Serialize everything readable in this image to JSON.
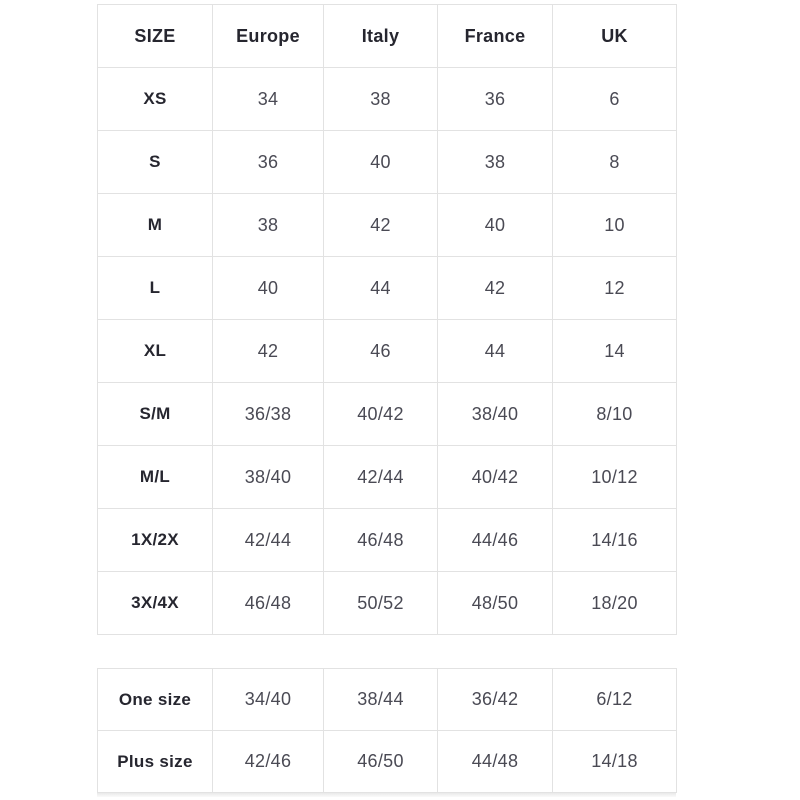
{
  "colors": {
    "background": "#ffffff",
    "border": "#e2e2e2",
    "header_text": "#26262f",
    "value_text": "#4a4a54"
  },
  "size_table": {
    "headers": [
      "SIZE",
      "Europe",
      "Italy",
      "France",
      "UK"
    ],
    "rows": [
      {
        "label": "XS",
        "values": [
          "34",
          "38",
          "36",
          "6"
        ]
      },
      {
        "label": "S",
        "values": [
          "36",
          "40",
          "38",
          "8"
        ]
      },
      {
        "label": "M",
        "values": [
          "38",
          "42",
          "40",
          "10"
        ]
      },
      {
        "label": "L",
        "values": [
          "40",
          "44",
          "42",
          "12"
        ]
      },
      {
        "label": "XL",
        "values": [
          "42",
          "46",
          "44",
          "14"
        ]
      },
      {
        "label": "S/M",
        "values": [
          "36/38",
          "40/42",
          "38/40",
          "8/10"
        ]
      },
      {
        "label": "M/L",
        "values": [
          "38/40",
          "42/44",
          "40/42",
          "10/12"
        ]
      },
      {
        "label": "1X/2X",
        "values": [
          "42/44",
          "46/48",
          "44/46",
          "14/16"
        ]
      },
      {
        "label": "3X/4X",
        "values": [
          "46/48",
          "50/52",
          "48/50",
          "18/20"
        ]
      }
    ]
  },
  "special_table": {
    "rows": [
      {
        "label": "One size",
        "values": [
          "34/40",
          "38/44",
          "36/42",
          "6/12"
        ]
      },
      {
        "label": "Plus size",
        "values": [
          "42/46",
          "46/50",
          "44/48",
          "14/18"
        ]
      }
    ]
  }
}
